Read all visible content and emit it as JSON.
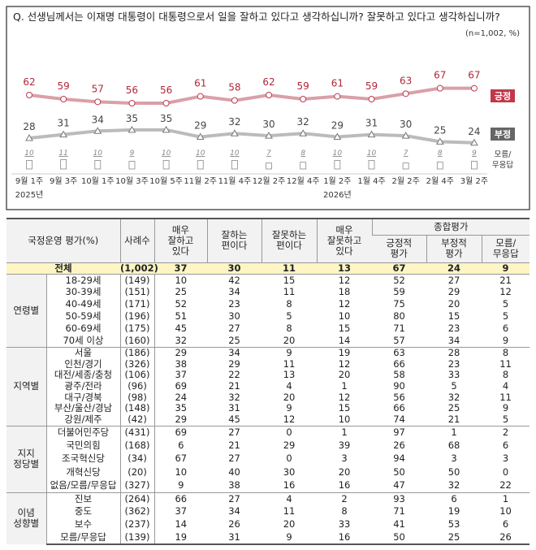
{
  "question": "Q. 선생님께서는 이재명 대통령이 대통령으로서 일을 잘하고 있다고 생각하십니까? 잘못하고 있다고 생각하십니까?",
  "note": "(n=1,002,  %)",
  "chart_data": {
    "type": "line",
    "categories": [
      "9월 1주",
      "9월 3주",
      "10월 1주",
      "10월 3주",
      "10월 5주",
      "11월 2주",
      "11월 4주",
      "12월 2주",
      "12월 4주",
      "1월 2주",
      "1월 4주",
      "2월 2주",
      "2월 4주",
      "3월 2주"
    ],
    "year_labels": [
      {
        "index": 0,
        "label": "2025년"
      },
      {
        "index": 9,
        "label": "2026년"
      }
    ],
    "series": [
      {
        "name": "긍정",
        "color": "#c0394b",
        "values": [
          62,
          59,
          57,
          56,
          56,
          61,
          58,
          62,
          59,
          61,
          59,
          63,
          67,
          67
        ]
      },
      {
        "name": "부정",
        "color": "#777777",
        "values": [
          28,
          31,
          34,
          35,
          35,
          29,
          32,
          30,
          32,
          29,
          31,
          30,
          25,
          24
        ]
      },
      {
        "name": "모름/\n무응답",
        "type": "bar",
        "values": [
          10,
          11,
          10,
          9,
          10,
          10,
          10,
          7,
          8,
          10,
          10,
          7,
          8,
          9
        ]
      }
    ],
    "legend": [
      "긍정",
      "부정",
      "모름/",
      "무응답"
    ]
  },
  "table": {
    "header": {
      "title": "국정운영 평가(%)",
      "n": "사례수",
      "c1": [
        "매우",
        "잘하고",
        "있다"
      ],
      "c2": [
        "잘하는",
        "편이다"
      ],
      "c3": [
        "잘못하는",
        "편이다"
      ],
      "c4": [
        "매우",
        "잘못하고",
        "있다"
      ],
      "group": "종합평가",
      "c5": [
        "긍정적",
        "평가"
      ],
      "c6": [
        "부정적",
        "평가"
      ],
      "c7": [
        "모름/",
        "무응답"
      ]
    },
    "total": {
      "label": "전체",
      "n": "(1,002)",
      "v": [
        "37",
        "30",
        "11",
        "13",
        "67",
        "24",
        "9"
      ]
    },
    "groups": [
      {
        "name": [
          "연령별"
        ],
        "rows": [
          {
            "label": "18-29세",
            "n": "(149)",
            "v": [
              "10",
              "42",
              "15",
              "12",
              "52",
              "27",
              "21"
            ]
          },
          {
            "label": "30-39세",
            "n": "(151)",
            "v": [
              "25",
              "34",
              "11",
              "18",
              "59",
              "29",
              "12"
            ]
          },
          {
            "label": "40-49세",
            "n": "(171)",
            "v": [
              "52",
              "23",
              "8",
              "12",
              "75",
              "20",
              "5"
            ]
          },
          {
            "label": "50-59세",
            "n": "(196)",
            "v": [
              "51",
              "30",
              "5",
              "10",
              "80",
              "15",
              "5"
            ]
          },
          {
            "label": "60-69세",
            "n": "(175)",
            "v": [
              "45",
              "27",
              "8",
              "15",
              "71",
              "23",
              "6"
            ]
          },
          {
            "label": "70세 이상",
            "n": "(160)",
            "v": [
              "32",
              "25",
              "20",
              "14",
              "57",
              "34",
              "9"
            ]
          }
        ]
      },
      {
        "name": [
          "지역별"
        ],
        "rows": [
          {
            "label": "서울",
            "n": "(186)",
            "v": [
              "29",
              "34",
              "9",
              "19",
              "63",
              "28",
              "8"
            ]
          },
          {
            "label": "인천/경기",
            "n": "(326)",
            "v": [
              "38",
              "29",
              "11",
              "12",
              "66",
              "23",
              "11"
            ]
          },
          {
            "label": "대전/세종/충청",
            "n": "(106)",
            "v": [
              "37",
              "22",
              "13",
              "20",
              "58",
              "33",
              "8"
            ]
          },
          {
            "label": "광주/전라",
            "n": "(96)",
            "v": [
              "69",
              "21",
              "4",
              "1",
              "90",
              "5",
              "4"
            ]
          },
          {
            "label": "대구/경북",
            "n": "(98)",
            "v": [
              "24",
              "32",
              "20",
              "12",
              "56",
              "32",
              "11"
            ]
          },
          {
            "label": "부산/울산/경남",
            "n": "(148)",
            "v": [
              "35",
              "31",
              "9",
              "15",
              "66",
              "25",
              "9"
            ]
          },
          {
            "label": "강원/제주",
            "n": "(42)",
            "v": [
              "29",
              "45",
              "12",
              "10",
              "74",
              "21",
              "5"
            ]
          }
        ]
      },
      {
        "name": [
          "지지",
          "정당별"
        ],
        "rows": [
          {
            "label": "더불어민주당",
            "n": "(431)",
            "v": [
              "69",
              "27",
              "0",
              "1",
              "97",
              "1",
              "2"
            ]
          },
          {
            "label": "국민의힘",
            "n": "(168)",
            "v": [
              "6",
              "21",
              "29",
              "39",
              "26",
              "68",
              "6"
            ]
          },
          {
            "label": "조국혁신당",
            "n": "(34)",
            "v": [
              "67",
              "27",
              "0",
              "3",
              "94",
              "3",
              "3"
            ]
          },
          {
            "label": "개혁신당",
            "n": "(20)",
            "v": [
              "10",
              "40",
              "30",
              "20",
              "50",
              "50",
              "0"
            ]
          },
          {
            "label": "없음/모름/무응답",
            "n": "(327)",
            "v": [
              "9",
              "38",
              "16",
              "16",
              "47",
              "32",
              "22"
            ]
          }
        ]
      },
      {
        "name": [
          "이념",
          "성향별"
        ],
        "rows": [
          {
            "label": "진보",
            "n": "(264)",
            "v": [
              "66",
              "27",
              "4",
              "2",
              "93",
              "6",
              "1"
            ]
          },
          {
            "label": "중도",
            "n": "(362)",
            "v": [
              "37",
              "34",
              "11",
              "8",
              "71",
              "19",
              "10"
            ]
          },
          {
            "label": "보수",
            "n": "(237)",
            "v": [
              "14",
              "26",
              "20",
              "33",
              "41",
              "53",
              "6"
            ]
          },
          {
            "label": "모름/무응답",
            "n": "(139)",
            "v": [
              "19",
              "31",
              "9",
              "16",
              "50",
              "25",
              "26"
            ]
          }
        ]
      }
    ]
  }
}
